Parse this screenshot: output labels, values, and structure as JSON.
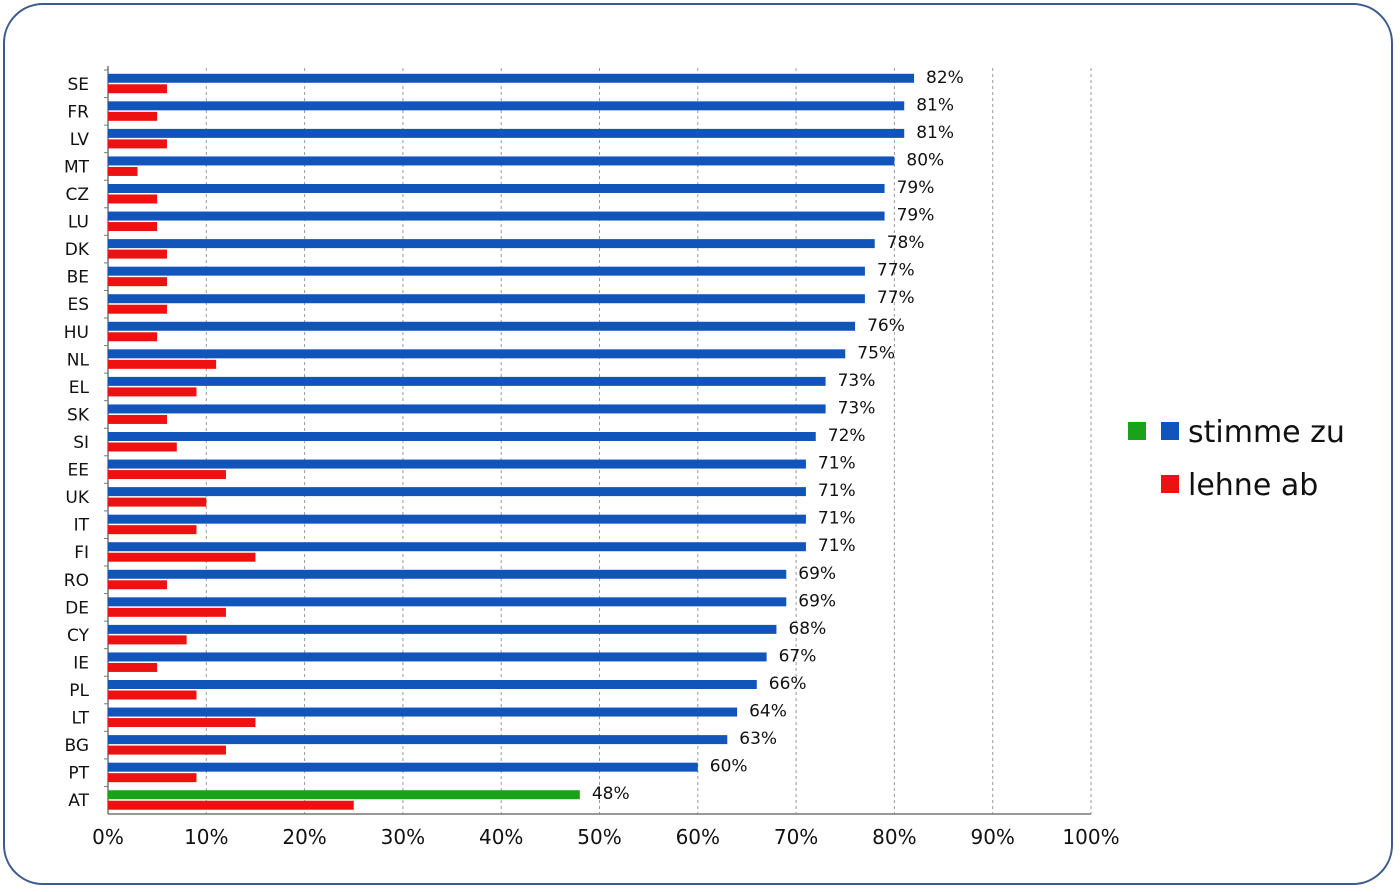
{
  "chart_data": {
    "type": "bar",
    "orientation": "horizontal",
    "categories": [
      "SE",
      "FR",
      "LV",
      "MT",
      "CZ",
      "LU",
      "DK",
      "BE",
      "ES",
      "HU",
      "NL",
      "EL",
      "SK",
      "SI",
      "EE",
      "UK",
      "IT",
      "FI",
      "RO",
      "DE",
      "CY",
      "IE",
      "PL",
      "LT",
      "BG",
      "PT",
      "AT"
    ],
    "series": [
      {
        "name": "stimme zu",
        "color": "#1155bb",
        "highlight_color": "#1aa31a",
        "highlight_category": "AT",
        "values": [
          82,
          81,
          81,
          80,
          79,
          79,
          78,
          77,
          77,
          76,
          75,
          73,
          73,
          72,
          71,
          71,
          71,
          71,
          69,
          69,
          68,
          67,
          66,
          64,
          63,
          60,
          48
        ],
        "labels": [
          "82%",
          "81%",
          "81%",
          "80%",
          "79%",
          "79%",
          "78%",
          "77%",
          "77%",
          "76%",
          "75%",
          "73%",
          "73%",
          "72%",
          "71%",
          "71%",
          "71%",
          "71%",
          "69%",
          "69%",
          "68%",
          "67%",
          "66%",
          "64%",
          "63%",
          "60%",
          "48%"
        ]
      },
      {
        "name": "lehne ab",
        "color": "#ee1111",
        "values": [
          6,
          5,
          6,
          3,
          5,
          5,
          6,
          6,
          6,
          5,
          11,
          9,
          6,
          7,
          12,
          10,
          9,
          15,
          6,
          12,
          8,
          5,
          9,
          15,
          12,
          9,
          25
        ]
      }
    ],
    "xlim": [
      0,
      100
    ],
    "xticks": [
      "0%",
      "10%",
      "20%",
      "30%",
      "40%",
      "50%",
      "60%",
      "70%",
      "80%",
      "90%",
      "100%"
    ],
    "grid": true,
    "legend": [
      {
        "label": "stimme zu",
        "swatches": [
          "#1aa31a",
          "#1155bb"
        ]
      },
      {
        "label": "lehne ab",
        "swatches": [
          "#ee1111"
        ]
      }
    ],
    "legend_position": "right"
  }
}
